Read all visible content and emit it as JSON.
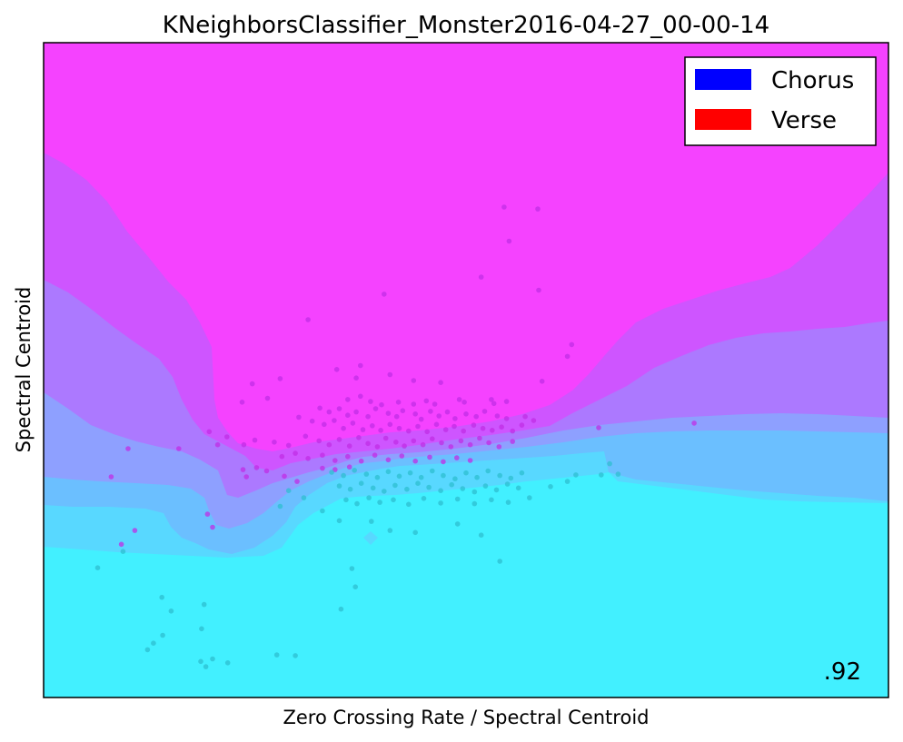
{
  "chart_data": {
    "type": "scatter",
    "title": "KNeighborsClassifier_Monster2016-04-27_00-00-14",
    "xlabel": "Zero Crossing Rate / Spectral Centroid",
    "ylabel": "Spectral Centroid",
    "score": ".92",
    "ticks": "none",
    "grid": false,
    "legend": {
      "position": "top-right",
      "entries": [
        {
          "label": "Chorus",
          "color": "#0000ff"
        },
        {
          "label": "Verse",
          "color": "#ff0000"
        }
      ]
    },
    "colors": {
      "verse_region": "#f542ff",
      "chorus_region": "#42f0ff",
      "band_1": "#ce55ff",
      "band_2": "#ac79ff",
      "band_3": "#8ea0ff",
      "band_4": "#6bbfff",
      "band_5": "#58d8ff",
      "point_verse": "#c02ee6",
      "point_chorus": "#2ebfd0"
    },
    "xlim": [
      0,
      1
    ],
    "ylim": [
      0,
      1
    ],
    "series": [
      {
        "class": "verse",
        "points": [
          [
            0.545,
            0.749
          ],
          [
            0.585,
            0.746
          ],
          [
            0.551,
            0.697
          ],
          [
            0.518,
            0.642
          ],
          [
            0.586,
            0.622
          ],
          [
            0.403,
            0.616
          ],
          [
            0.313,
            0.577
          ],
          [
            0.625,
            0.539
          ],
          [
            0.62,
            0.521
          ],
          [
            0.375,
            0.507
          ],
          [
            0.41,
            0.493
          ],
          [
            0.347,
            0.501
          ],
          [
            0.37,
            0.488
          ],
          [
            0.438,
            0.484
          ],
          [
            0.47,
            0.481
          ],
          [
            0.59,
            0.483
          ],
          [
            0.28,
            0.487
          ],
          [
            0.247,
            0.479
          ],
          [
            0.235,
            0.451
          ],
          [
            0.265,
            0.457
          ],
          [
            0.36,
            0.455
          ],
          [
            0.375,
            0.46
          ],
          [
            0.387,
            0.452
          ],
          [
            0.4,
            0.447
          ],
          [
            0.42,
            0.451
          ],
          [
            0.438,
            0.448
          ],
          [
            0.453,
            0.453
          ],
          [
            0.463,
            0.448
          ],
          [
            0.492,
            0.455
          ],
          [
            0.498,
            0.451
          ],
          [
            0.53,
            0.455
          ],
          [
            0.533,
            0.449
          ],
          [
            0.548,
            0.452
          ],
          [
            0.327,
            0.442
          ],
          [
            0.338,
            0.436
          ],
          [
            0.35,
            0.441
          ],
          [
            0.36,
            0.431
          ],
          [
            0.37,
            0.436
          ],
          [
            0.384,
            0.429
          ],
          [
            0.393,
            0.441
          ],
          [
            0.408,
            0.434
          ],
          [
            0.418,
            0.429
          ],
          [
            0.425,
            0.438
          ],
          [
            0.44,
            0.433
          ],
          [
            0.447,
            0.425
          ],
          [
            0.458,
            0.437
          ],
          [
            0.468,
            0.43
          ],
          [
            0.478,
            0.436
          ],
          [
            0.487,
            0.426
          ],
          [
            0.5,
            0.433
          ],
          [
            0.512,
            0.429
          ],
          [
            0.522,
            0.437
          ],
          [
            0.537,
            0.43
          ],
          [
            0.548,
            0.426
          ],
          [
            0.57,
            0.429
          ],
          [
            0.58,
            0.423
          ],
          [
            0.302,
            0.428
          ],
          [
            0.318,
            0.422
          ],
          [
            0.332,
            0.417
          ],
          [
            0.344,
            0.423
          ],
          [
            0.355,
            0.411
          ],
          [
            0.366,
            0.419
          ],
          [
            0.378,
            0.409
          ],
          [
            0.389,
            0.415
          ],
          [
            0.399,
            0.408
          ],
          [
            0.41,
            0.417
          ],
          [
            0.421,
            0.411
          ],
          [
            0.432,
            0.407
          ],
          [
            0.443,
            0.414
          ],
          [
            0.454,
            0.406
          ],
          [
            0.465,
            0.417
          ],
          [
            0.476,
            0.409
          ],
          [
            0.486,
            0.414
          ],
          [
            0.497,
            0.407
          ],
          [
            0.509,
            0.416
          ],
          [
            0.52,
            0.411
          ],
          [
            0.531,
            0.408
          ],
          [
            0.542,
            0.413
          ],
          [
            0.555,
            0.407
          ],
          [
            0.566,
            0.416
          ],
          [
            0.196,
            0.406
          ],
          [
            0.206,
            0.386
          ],
          [
            0.217,
            0.398
          ],
          [
            0.237,
            0.386
          ],
          [
            0.25,
            0.393
          ],
          [
            0.273,
            0.39
          ],
          [
            0.29,
            0.385
          ],
          [
            0.31,
            0.399
          ],
          [
            0.326,
            0.392
          ],
          [
            0.338,
            0.386
          ],
          [
            0.35,
            0.394
          ],
          [
            0.362,
            0.384
          ],
          [
            0.373,
            0.397
          ],
          [
            0.384,
            0.388
          ],
          [
            0.395,
            0.383
          ],
          [
            0.405,
            0.396
          ],
          [
            0.417,
            0.39
          ],
          [
            0.427,
            0.384
          ],
          [
            0.438,
            0.392
          ],
          [
            0.449,
            0.386
          ],
          [
            0.46,
            0.395
          ],
          [
            0.471,
            0.389
          ],
          [
            0.482,
            0.383
          ],
          [
            0.494,
            0.392
          ],
          [
            0.505,
            0.386
          ],
          [
            0.516,
            0.396
          ],
          [
            0.527,
            0.389
          ],
          [
            0.539,
            0.383
          ],
          [
            0.555,
            0.391
          ],
          [
            0.1,
            0.38
          ],
          [
            0.16,
            0.38
          ],
          [
            0.282,
            0.368
          ],
          [
            0.298,
            0.373
          ],
          [
            0.313,
            0.365
          ],
          [
            0.33,
            0.37
          ],
          [
            0.345,
            0.362
          ],
          [
            0.36,
            0.368
          ],
          [
            0.376,
            0.361
          ],
          [
            0.392,
            0.37
          ],
          [
            0.408,
            0.363
          ],
          [
            0.424,
            0.369
          ],
          [
            0.44,
            0.361
          ],
          [
            0.457,
            0.367
          ],
          [
            0.473,
            0.36
          ],
          [
            0.489,
            0.366
          ],
          [
            0.505,
            0.362
          ],
          [
            0.236,
            0.348
          ],
          [
            0.252,
            0.351
          ],
          [
            0.264,
            0.346
          ],
          [
            0.33,
            0.35
          ],
          [
            0.345,
            0.348
          ],
          [
            0.362,
            0.352
          ],
          [
            0.08,
            0.337
          ],
          [
            0.24,
            0.337
          ],
          [
            0.285,
            0.338
          ],
          [
            0.3,
            0.33
          ],
          [
            0.194,
            0.28
          ],
          [
            0.2,
            0.26
          ],
          [
            0.108,
            0.255
          ],
          [
            0.092,
            0.234
          ],
          [
            0.77,
            0.419
          ],
          [
            0.657,
            0.412
          ]
        ]
      },
      {
        "class": "chorus",
        "points": [
          [
            0.341,
            0.344
          ],
          [
            0.355,
            0.339
          ],
          [
            0.368,
            0.347
          ],
          [
            0.382,
            0.341
          ],
          [
            0.395,
            0.336
          ],
          [
            0.408,
            0.345
          ],
          [
            0.421,
            0.338
          ],
          [
            0.434,
            0.343
          ],
          [
            0.447,
            0.336
          ],
          [
            0.46,
            0.346
          ],
          [
            0.473,
            0.339
          ],
          [
            0.487,
            0.334
          ],
          [
            0.5,
            0.343
          ],
          [
            0.513,
            0.336
          ],
          [
            0.526,
            0.346
          ],
          [
            0.54,
            0.339
          ],
          [
            0.553,
            0.335
          ],
          [
            0.566,
            0.343
          ],
          [
            0.35,
            0.323
          ],
          [
            0.363,
            0.318
          ],
          [
            0.376,
            0.327
          ],
          [
            0.39,
            0.32
          ],
          [
            0.403,
            0.315
          ],
          [
            0.416,
            0.324
          ],
          [
            0.43,
            0.318
          ],
          [
            0.443,
            0.327
          ],
          [
            0.456,
            0.321
          ],
          [
            0.47,
            0.316
          ],
          [
            0.483,
            0.325
          ],
          [
            0.496,
            0.319
          ],
          [
            0.51,
            0.314
          ],
          [
            0.523,
            0.323
          ],
          [
            0.536,
            0.317
          ],
          [
            0.549,
            0.326
          ],
          [
            0.562,
            0.32
          ],
          [
            0.358,
            0.302
          ],
          [
            0.371,
            0.296
          ],
          [
            0.385,
            0.305
          ],
          [
            0.398,
            0.298
          ],
          [
            0.414,
            0.302
          ],
          [
            0.432,
            0.295
          ],
          [
            0.45,
            0.304
          ],
          [
            0.47,
            0.297
          ],
          [
            0.49,
            0.303
          ],
          [
            0.51,
            0.296
          ],
          [
            0.53,
            0.302
          ],
          [
            0.55,
            0.298
          ],
          [
            0.575,
            0.305
          ],
          [
            0.6,
            0.322
          ],
          [
            0.63,
            0.34
          ],
          [
            0.66,
            0.34
          ],
          [
            0.67,
            0.357
          ],
          [
            0.68,
            0.341
          ],
          [
            0.62,
            0.33
          ],
          [
            0.29,
            0.316
          ],
          [
            0.308,
            0.305
          ],
          [
            0.28,
            0.292
          ],
          [
            0.33,
            0.285
          ],
          [
            0.35,
            0.27
          ],
          [
            0.388,
            0.269
          ],
          [
            0.41,
            0.255
          ],
          [
            0.44,
            0.252
          ],
          [
            0.49,
            0.265
          ],
          [
            0.518,
            0.248
          ],
          [
            0.54,
            0.208
          ],
          [
            0.365,
            0.197
          ],
          [
            0.369,
            0.169
          ],
          [
            0.352,
            0.135
          ],
          [
            0.064,
            0.198
          ],
          [
            0.094,
            0.223
          ],
          [
            0.14,
            0.153
          ],
          [
            0.19,
            0.142
          ],
          [
            0.151,
            0.132
          ],
          [
            0.187,
            0.105
          ],
          [
            0.141,
            0.095
          ],
          [
            0.13,
            0.083
          ],
          [
            0.123,
            0.073
          ],
          [
            0.298,
            0.064
          ],
          [
            0.276,
            0.065
          ],
          [
            0.2,
            0.059
          ],
          [
            0.186,
            0.055
          ],
          [
            0.218,
            0.053
          ],
          [
            0.192,
            0.047
          ]
        ]
      }
    ]
  }
}
